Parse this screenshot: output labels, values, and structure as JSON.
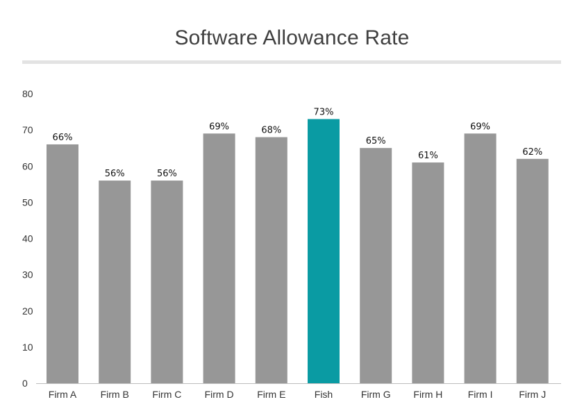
{
  "title": "Software Allowance Rate",
  "colors": {
    "bar": "#979797",
    "highlight": "#0a9ba3",
    "axis": "#bdbdbd",
    "rule": "#e3e3e3"
  },
  "chart_data": {
    "type": "bar",
    "title": "Software Allowance Rate",
    "xlabel": "",
    "ylabel": "",
    "ylim": [
      0,
      80
    ],
    "yticks": [
      0,
      10,
      20,
      30,
      40,
      50,
      60,
      70,
      80
    ],
    "grid": false,
    "legend": "none",
    "categories": [
      "Firm A",
      "Firm B",
      "Firm C",
      "Firm D",
      "Firm E",
      "Fish",
      "Firm G",
      "Firm H",
      "Firm I",
      "Firm J"
    ],
    "values": [
      66,
      56,
      56,
      69,
      68,
      73,
      65,
      61,
      69,
      62
    ],
    "data_labels": [
      "66%",
      "56%",
      "56%",
      "69%",
      "68%",
      "73%",
      "65%",
      "61%",
      "69%",
      "62%"
    ],
    "highlight_category": "Fish"
  }
}
